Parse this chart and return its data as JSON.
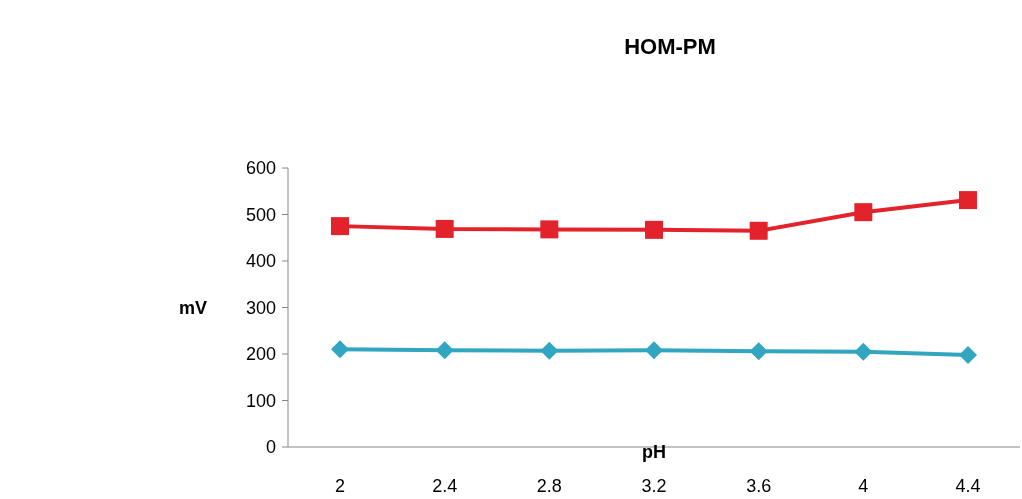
{
  "chart_data": {
    "type": "line",
    "title": "HOM-PM",
    "xlabel": "pH",
    "ylabel": "mV",
    "categories": [
      "2",
      "2.4",
      "2.8",
      "3.2",
      "3.6",
      "4",
      "4.4"
    ],
    "series": [
      {
        "color": "#e3232c",
        "marker": "square",
        "values": [
          475,
          469,
          468,
          467,
          465,
          505,
          531
        ]
      },
      {
        "color": "#31a6c0",
        "marker": "diamond",
        "values": [
          210,
          208,
          207,
          208,
          206,
          205,
          198
        ]
      }
    ],
    "ylim": [
      0,
      600
    ],
    "yticks": [
      0,
      100,
      200,
      300,
      400,
      500,
      600
    ],
    "grid": false,
    "legend": false,
    "line_style": "solid"
  }
}
